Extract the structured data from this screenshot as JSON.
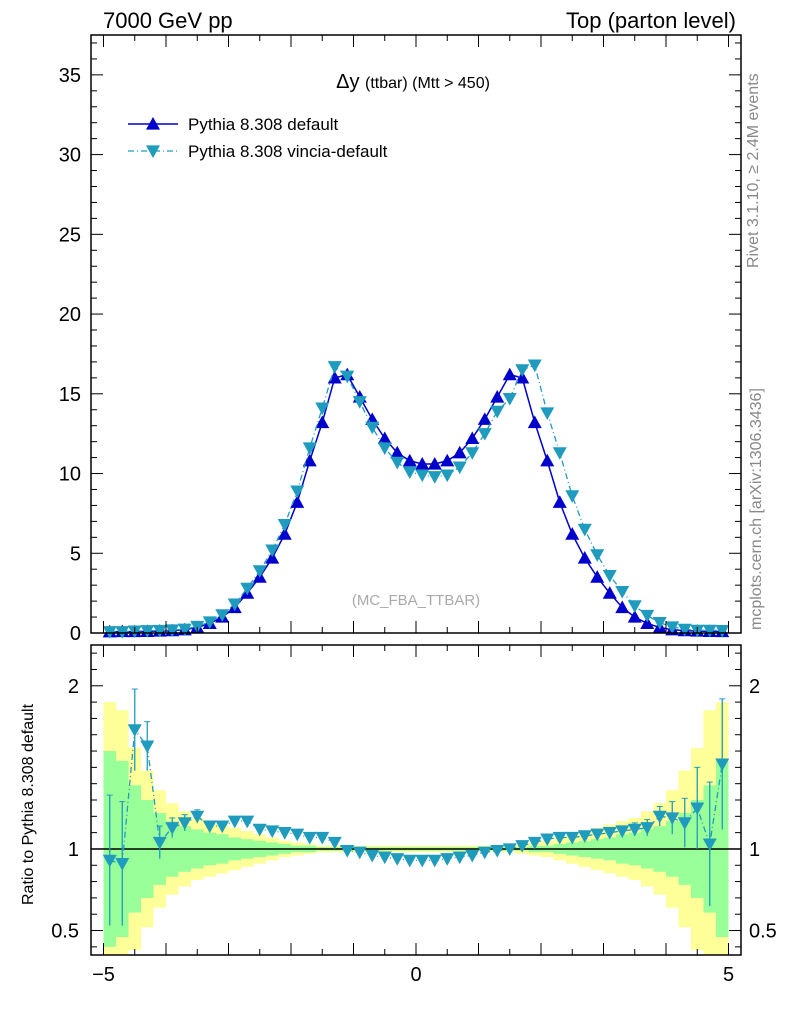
{
  "header": {
    "left": "7000 GeV pp",
    "right": "Top (parton level)"
  },
  "side_labels": {
    "rivet": "Rivet 3.1.10, ≥ 2.4M events",
    "mcplots": "mcplots.cern.ch [arXiv:1306.3436]"
  },
  "chart_data": [
    {
      "type": "line",
      "title_main": "Δy",
      "title_detail": "(ttbar) (Mtt > 450)",
      "watermark": "(MC_FBA_TTBAR)",
      "xlim": [
        -5.2,
        5.2
      ],
      "ylim": [
        0,
        37.5
      ],
      "yticks": [
        0,
        5,
        10,
        15,
        20,
        25,
        30,
        35
      ],
      "legend_position": "top-left",
      "colors": {
        "default": "#0000cc",
        "vincia": "#1e9bbd"
      },
      "x": [
        -4.9,
        -4.7,
        -4.5,
        -4.3,
        -4.1,
        -3.9,
        -3.7,
        -3.5,
        -3.3,
        -3.1,
        -2.9,
        -2.7,
        -2.5,
        -2.3,
        -2.1,
        -1.9,
        -1.7,
        -1.5,
        -1.3,
        -1.1,
        -0.9,
        -0.7,
        -0.5,
        -0.3,
        -0.1,
        0.1,
        0.3,
        0.5,
        0.7,
        0.9,
        1.1,
        1.3,
        1.5,
        1.7,
        1.9,
        2.1,
        2.3,
        2.5,
        2.7,
        2.9,
        3.1,
        3.3,
        3.5,
        3.7,
        3.9,
        4.1,
        4.3,
        4.5,
        4.7,
        4.9
      ],
      "series": [
        {
          "name": "Pythia 8.308 default",
          "marker": "triangle-up",
          "style": "solid",
          "values": [
            0.08,
            0.09,
            0.09,
            0.1,
            0.12,
            0.15,
            0.2,
            0.35,
            0.6,
            1.0,
            1.6,
            2.5,
            3.5,
            4.7,
            6.2,
            8.2,
            10.8,
            13.2,
            16.0,
            16.2,
            14.8,
            13.4,
            12.2,
            11.3,
            10.8,
            10.6,
            10.6,
            10.8,
            11.3,
            12.2,
            13.4,
            14.8,
            16.2,
            16.0,
            13.2,
            10.8,
            8.2,
            6.2,
            4.7,
            3.5,
            2.5,
            1.6,
            1.0,
            0.6,
            0.35,
            0.2,
            0.15,
            0.12,
            0.1,
            0.09
          ]
        },
        {
          "name": "Pythia 8.308 vincia-default",
          "marker": "triangle-down",
          "style": "dash-dot",
          "values": [
            0.08,
            0.08,
            0.12,
            0.14,
            0.16,
            0.19,
            0.24,
            0.41,
            0.69,
            1.14,
            1.81,
            2.8,
            3.9,
            5.2,
            6.8,
            8.9,
            11.6,
            14.1,
            16.7,
            16.1,
            14.5,
            12.9,
            11.6,
            10.7,
            10.1,
            9.9,
            9.8,
            9.9,
            10.4,
            11.3,
            12.5,
            13.9,
            14.7,
            16.5,
            16.8,
            13.8,
            11.3,
            8.6,
            6.5,
            4.9,
            3.6,
            2.6,
            1.7,
            1.1,
            0.65,
            0.38,
            0.23,
            0.17,
            0.17,
            0.15
          ]
        }
      ]
    },
    {
      "type": "line",
      "ylabel": "Ratio to Pythia 8.308 default",
      "xlim": [
        -5.2,
        5.2
      ],
      "ylim": [
        0.35,
        2.25
      ],
      "xticks": [
        -5,
        0,
        5
      ],
      "yticks": [
        0.5,
        1,
        2
      ],
      "band_colors": {
        "inner": "#99ff99",
        "outer": "#ffff99"
      },
      "x": [
        -4.9,
        -4.7,
        -4.5,
        -4.3,
        -4.1,
        -3.9,
        -3.7,
        -3.5,
        -3.3,
        -3.1,
        -2.9,
        -2.7,
        -2.5,
        -2.3,
        -2.1,
        -1.9,
        -1.7,
        -1.5,
        -1.3,
        -1.1,
        -0.9,
        -0.7,
        -0.5,
        -0.3,
        -0.1,
        0.1,
        0.3,
        0.5,
        0.7,
        0.9,
        1.1,
        1.3,
        1.5,
        1.7,
        1.9,
        2.1,
        2.3,
        2.5,
        2.7,
        2.9,
        3.1,
        3.3,
        3.5,
        3.7,
        3.9,
        4.1,
        4.3,
        4.5,
        4.7,
        4.9
      ],
      "band_inner": [
        0.6,
        0.54,
        0.39,
        0.3,
        0.22,
        0.17,
        0.14,
        0.12,
        0.1,
        0.09,
        0.07,
        0.06,
        0.05,
        0.04,
        0.03,
        0.02,
        0.02,
        0.01,
        0.01,
        0.01,
        0.01,
        0.01,
        0.01,
        0.01,
        0.01,
        0.01,
        0.01,
        0.01,
        0.01,
        0.01,
        0.01,
        0.01,
        0.01,
        0.01,
        0.02,
        0.02,
        0.03,
        0.04,
        0.05,
        0.06,
        0.07,
        0.09,
        0.1,
        0.12,
        0.14,
        0.17,
        0.22,
        0.3,
        0.39,
        0.54
      ],
      "band_outer": [
        0.9,
        0.85,
        0.62,
        0.48,
        0.36,
        0.28,
        0.23,
        0.19,
        0.17,
        0.15,
        0.13,
        0.11,
        0.09,
        0.07,
        0.05,
        0.04,
        0.03,
        0.02,
        0.02,
        0.02,
        0.02,
        0.02,
        0.02,
        0.02,
        0.02,
        0.02,
        0.02,
        0.02,
        0.02,
        0.02,
        0.02,
        0.02,
        0.02,
        0.03,
        0.04,
        0.05,
        0.07,
        0.09,
        0.11,
        0.13,
        0.15,
        0.17,
        0.19,
        0.23,
        0.28,
        0.36,
        0.48,
        0.62,
        0.85,
        0.9
      ],
      "ratio": [
        0.93,
        0.91,
        1.73,
        1.63,
        1.04,
        1.13,
        1.16,
        1.2,
        1.14,
        1.14,
        1.17,
        1.17,
        1.12,
        1.11,
        1.1,
        1.09,
        1.07,
        1.07,
        1.04,
        0.99,
        0.98,
        0.96,
        0.95,
        0.94,
        0.93,
        0.93,
        0.93,
        0.94,
        0.95,
        0.96,
        0.98,
        0.99,
        1.0,
        1.02,
        1.04,
        1.06,
        1.07,
        1.07,
        1.08,
        1.09,
        1.1,
        1.11,
        1.12,
        1.13,
        1.2,
        1.19,
        1.16,
        1.25,
        1.03,
        1.52
      ],
      "ratio_err": [
        0.4,
        0.38,
        0.25,
        0.15,
        0.1,
        0.06,
        0.05,
        0.04,
        0.03,
        0.02,
        0.02,
        0.02,
        0.01,
        0.01,
        0.01,
        0.01,
        0.01,
        0.01,
        0.01,
        0.01,
        0.01,
        0.01,
        0.01,
        0.01,
        0.01,
        0.01,
        0.01,
        0.01,
        0.01,
        0.01,
        0.01,
        0.01,
        0.01,
        0.01,
        0.01,
        0.01,
        0.01,
        0.01,
        0.02,
        0.02,
        0.02,
        0.03,
        0.04,
        0.05,
        0.06,
        0.1,
        0.15,
        0.25,
        0.38,
        0.4
      ]
    }
  ]
}
